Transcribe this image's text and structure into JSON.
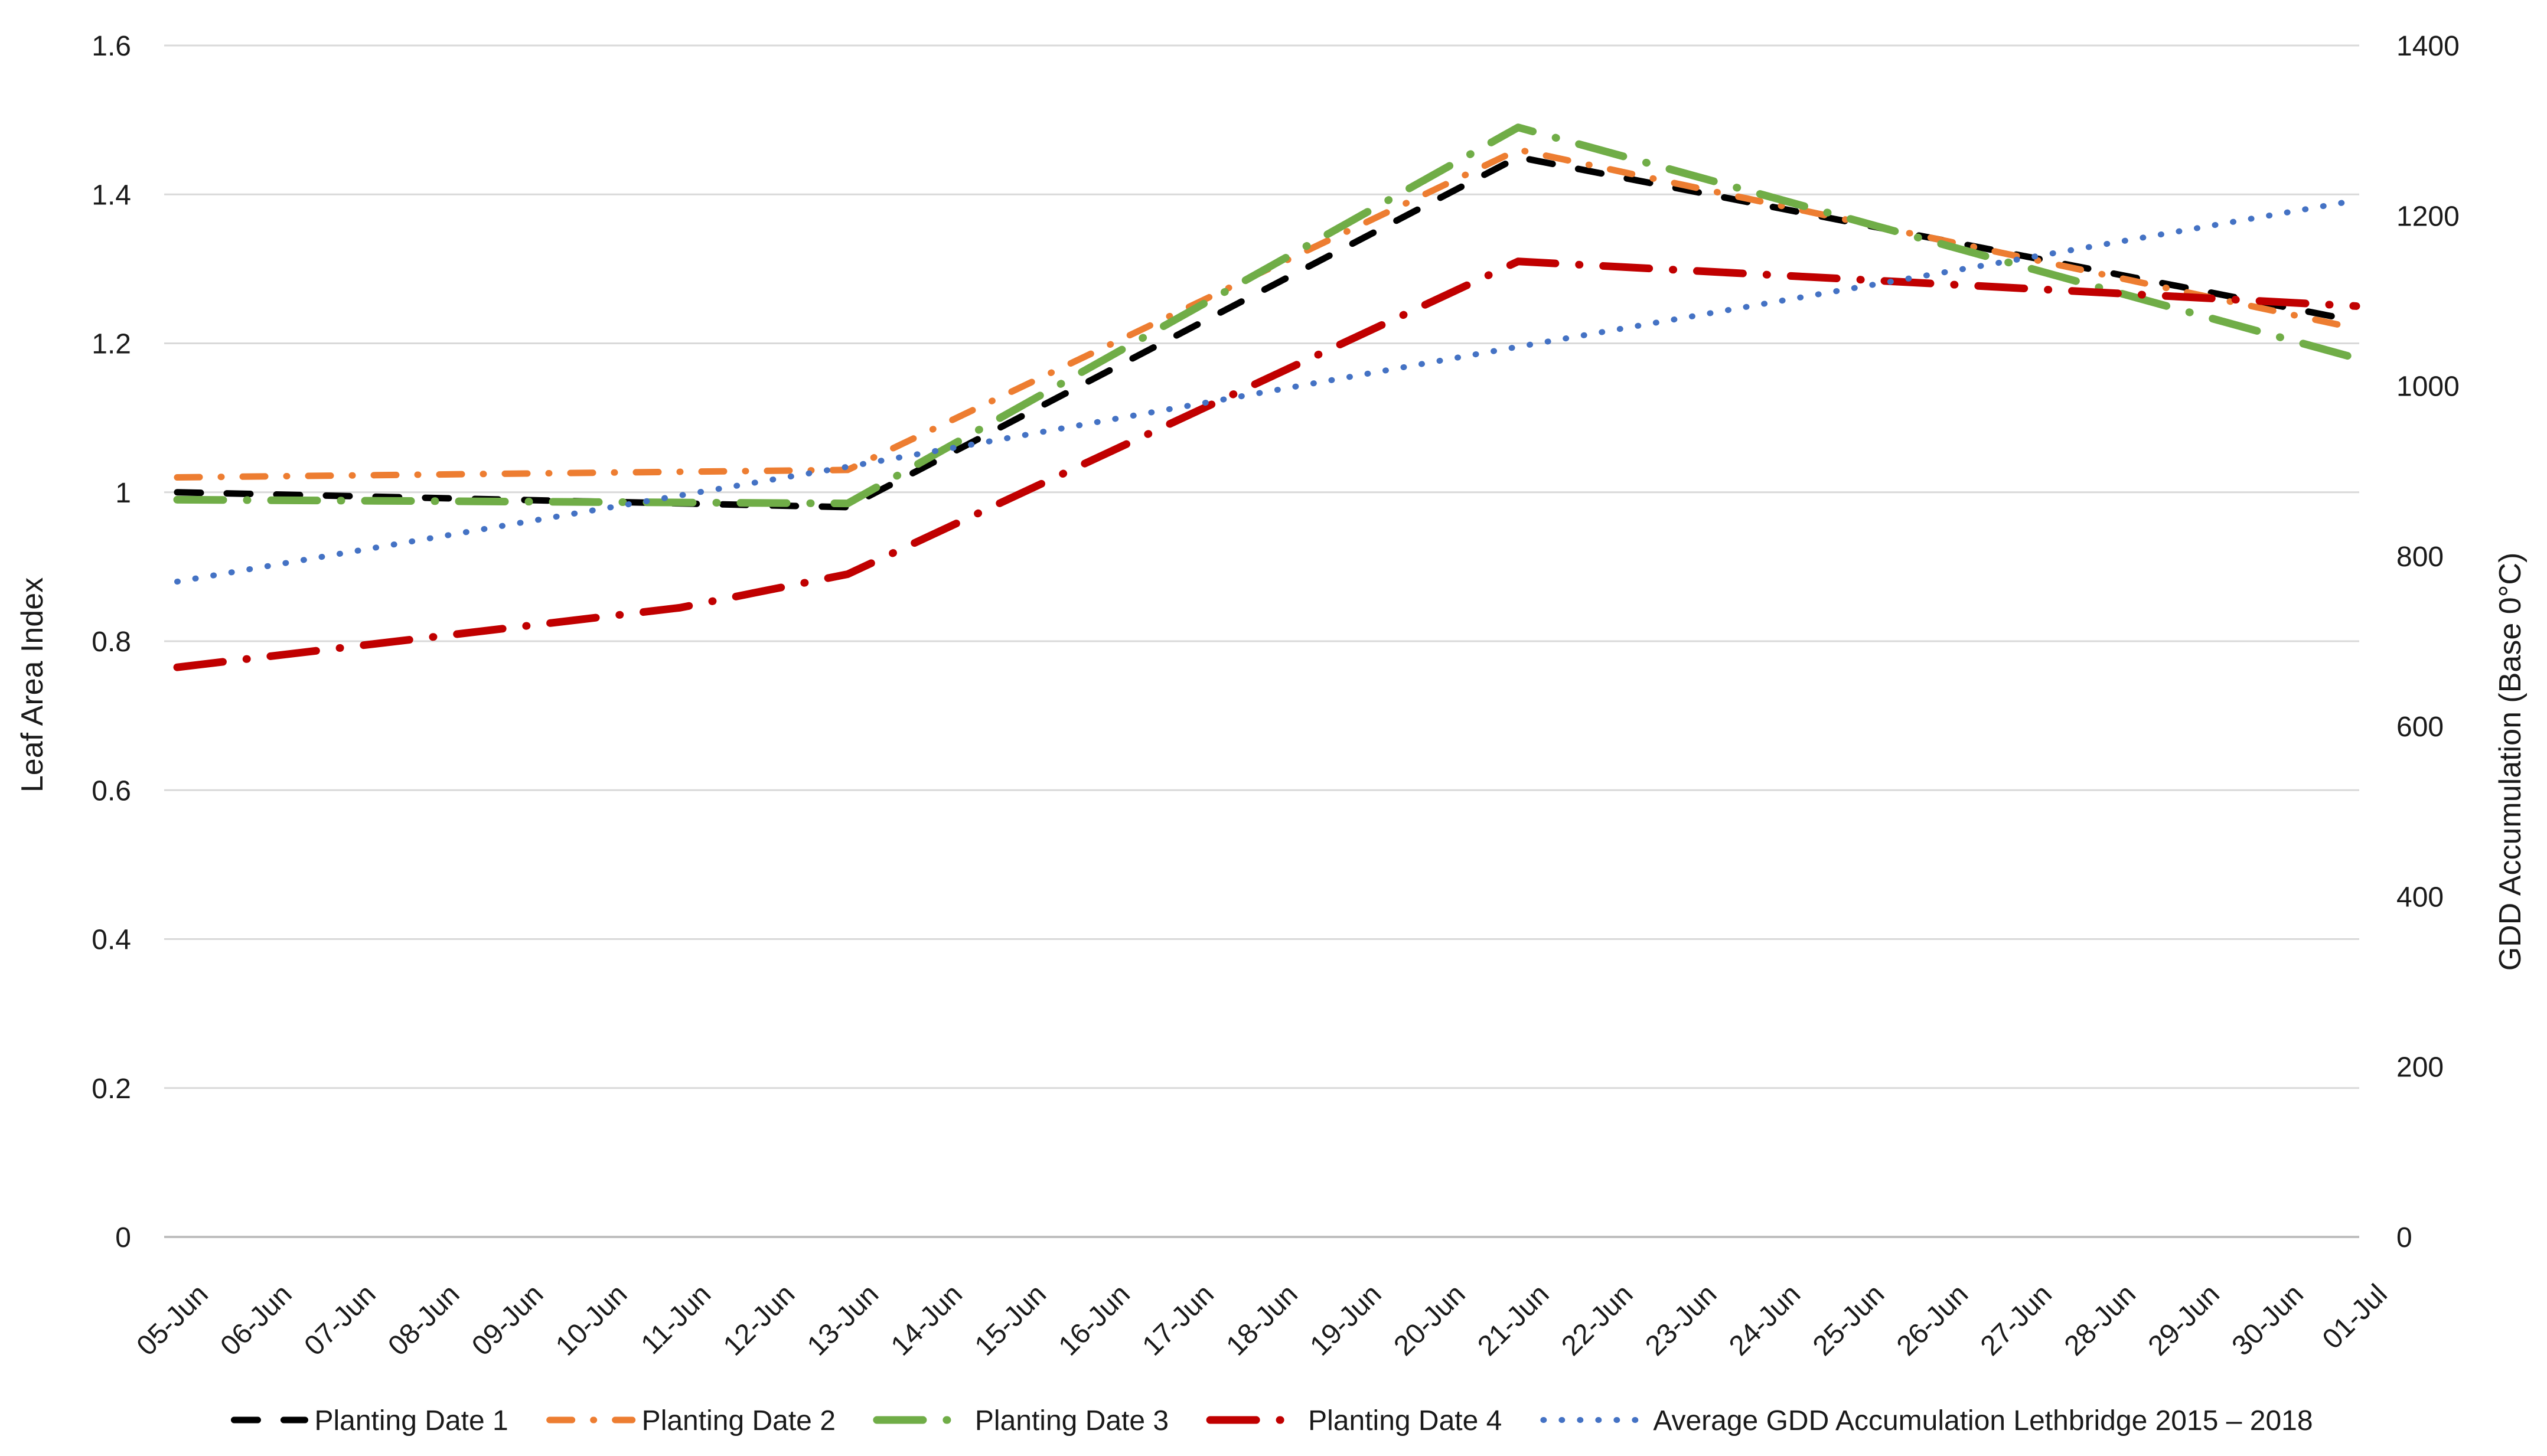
{
  "chart_data": {
    "type": "line",
    "title": "",
    "categories": [
      "05-Jun",
      "06-Jun",
      "07-Jun",
      "08-Jun",
      "09-Jun",
      "10-Jun",
      "11-Jun",
      "12-Jun",
      "13-Jun",
      "14-Jun",
      "15-Jun",
      "16-Jun",
      "17-Jun",
      "18-Jun",
      "19-Jun",
      "20-Jun",
      "21-Jun",
      "22-Jun",
      "23-Jun",
      "24-Jun",
      "25-Jun",
      "26-Jun",
      "27-Jun",
      "28-Jun",
      "29-Jun",
      "30-Jun",
      "01-Jul"
    ],
    "left_axis": {
      "label": "Leaf Area Index",
      "min": 0,
      "max": 1.6,
      "step": 0.2,
      "ticks": [
        "0",
        "0.2",
        "0.4",
        "0.6",
        "0.8",
        "1",
        "1.2",
        "1.4",
        "1.6"
      ]
    },
    "right_axis": {
      "label": "GDD Accumulation (Base 0°C)",
      "min": 0,
      "max": 1400,
      "step": 200,
      "ticks": [
        "0",
        "200",
        "400",
        "600",
        "800",
        "1000",
        "1200",
        "1400"
      ]
    },
    "grid": true,
    "legend_position": "bottom",
    "gridline_color": "#D9D9D9",
    "axisline_color": "#BFBFBF",
    "series": [
      {
        "name": "Planting Date 1",
        "axis": "left",
        "color": "#000000",
        "style": "dash",
        "width": 11,
        "points": [
          {
            "date": "05-Jun",
            "value": 1.0
          },
          {
            "date": "13-Jun",
            "value": 0.98
          },
          {
            "date": "21-Jun",
            "value": 1.45
          },
          {
            "date": "01-Jul",
            "value": 1.23
          }
        ]
      },
      {
        "name": "Planting Date 2",
        "axis": "left",
        "color": "#ED7D31",
        "style": "dash-dot",
        "width": 11,
        "points": [
          {
            "date": "05-Jun",
            "value": 1.02
          },
          {
            "date": "13-Jun",
            "value": 1.03
          },
          {
            "date": "21-Jun",
            "value": 1.46
          },
          {
            "date": "01-Jul",
            "value": 1.22
          }
        ]
      },
      {
        "name": "Planting Date 3",
        "axis": "left",
        "color": "#70AD47",
        "style": "long-dash-dot",
        "width": 13,
        "points": [
          {
            "date": "05-Jun",
            "value": 0.99
          },
          {
            "date": "13-Jun",
            "value": 0.985
          },
          {
            "date": "21-Jun",
            "value": 1.49
          },
          {
            "date": "01-Jul",
            "value": 1.18
          }
        ]
      },
      {
        "name": "Planting Date 4",
        "axis": "left",
        "color": "#C00000",
        "style": "long-dash-dot",
        "width": 13,
        "points": [
          {
            "date": "05-Jun",
            "value": 0.765
          },
          {
            "date": "11-Jun",
            "value": 0.845
          },
          {
            "date": "13-Jun",
            "value": 0.89
          },
          {
            "date": "21-Jun",
            "value": 1.31
          },
          {
            "date": "01-Jul",
            "value": 1.25
          }
        ]
      },
      {
        "name": "Average GDD Accumulation Lethbridge 2015 – 2018",
        "axis": "right",
        "color": "#4472C4",
        "style": "dot",
        "width": 10,
        "points": [
          {
            "date": "05-Jun",
            "value": 770
          },
          {
            "date": "13-Jun",
            "value": 905
          },
          {
            "date": "21-Jun",
            "value": 1046
          },
          {
            "date": "01-Jul",
            "value": 1218
          }
        ]
      }
    ]
  }
}
